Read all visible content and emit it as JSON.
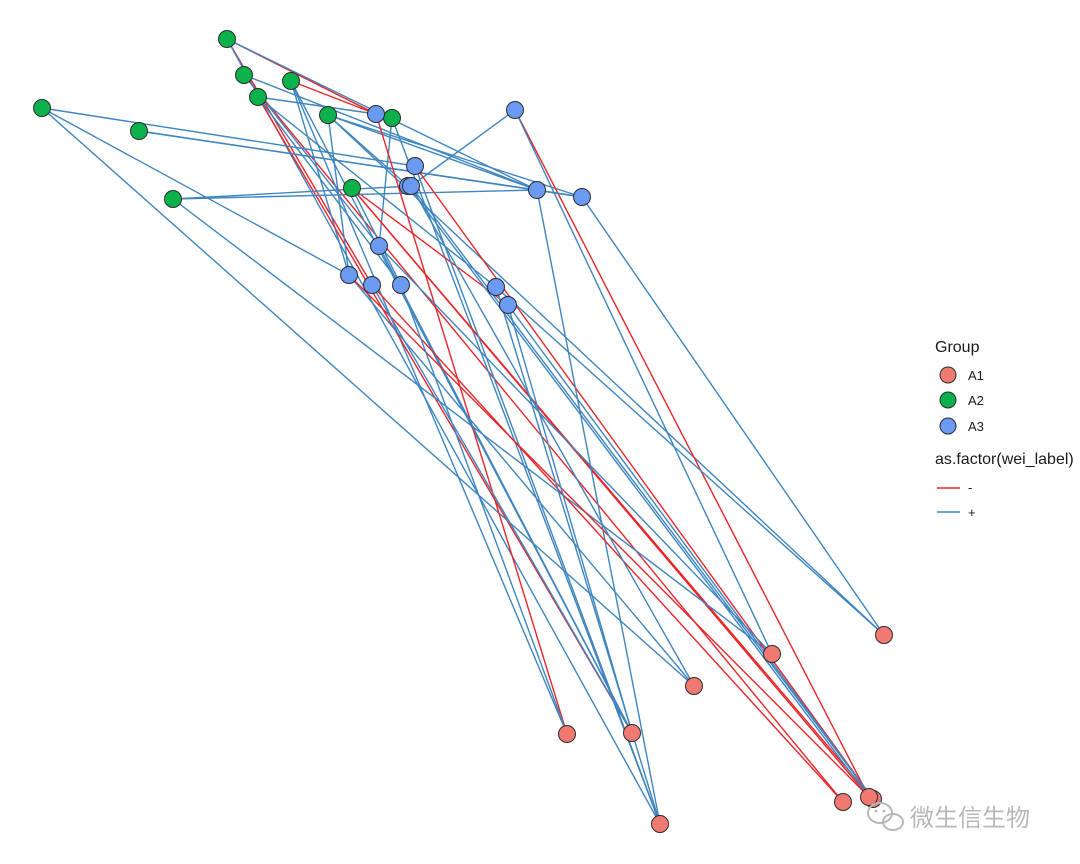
{
  "colors": {
    "background": "#ffffff",
    "node_stroke": "#2b2b2b",
    "group_A1": "#F07A72",
    "group_A2": "#0DB14B",
    "group_A3": "#6B9AF2",
    "edge_negative": "#E8262A",
    "edge_positive": "#3F85BF",
    "watermark": "#b8b8b8"
  },
  "legend": {
    "group_title": "Group",
    "groups": [
      {
        "key": "A1",
        "label": "A1"
      },
      {
        "key": "A2",
        "label": "A2"
      },
      {
        "key": "A3",
        "label": "A3"
      }
    ],
    "edge_title": "as.factor(wei_label)",
    "edges": [
      {
        "key": "-",
        "label": "-"
      },
      {
        "key": "+",
        "label": "+"
      }
    ]
  },
  "watermark": {
    "text": "微生信生物",
    "icon": "wechat-icon"
  },
  "network": {
    "nodes": [
      {
        "id": "g1",
        "group": "A2"
      },
      {
        "id": "g2",
        "group": "A2"
      },
      {
        "id": "g3",
        "group": "A2"
      },
      {
        "id": "g4",
        "group": "A2"
      },
      {
        "id": "g5",
        "group": "A2"
      },
      {
        "id": "g6",
        "group": "A2"
      },
      {
        "id": "g7",
        "group": "A2"
      },
      {
        "id": "g8",
        "group": "A2"
      },
      {
        "id": "g9",
        "group": "A2"
      },
      {
        "id": "g10",
        "group": "A2"
      },
      {
        "id": "b1",
        "group": "A3"
      },
      {
        "id": "b2",
        "group": "A3"
      },
      {
        "id": "b3",
        "group": "A3"
      },
      {
        "id": "b4",
        "group": "A3"
      },
      {
        "id": "b5",
        "group": "A3"
      },
      {
        "id": "b6",
        "group": "A3"
      },
      {
        "id": "b7",
        "group": "A3"
      },
      {
        "id": "b8",
        "group": "A3"
      },
      {
        "id": "b9",
        "group": "A3"
      },
      {
        "id": "b10",
        "group": "A3"
      },
      {
        "id": "b11",
        "group": "A3"
      },
      {
        "id": "b12",
        "group": "A3"
      },
      {
        "id": "b13",
        "group": "A3"
      },
      {
        "id": "r1",
        "group": "A1"
      },
      {
        "id": "r2",
        "group": "A1"
      },
      {
        "id": "r3",
        "group": "A1"
      },
      {
        "id": "r4",
        "group": "A1"
      },
      {
        "id": "r5",
        "group": "A1"
      },
      {
        "id": "r6",
        "group": "A1"
      },
      {
        "id": "r7",
        "group": "A1"
      },
      {
        "id": "r8",
        "group": "A1"
      },
      {
        "id": "r9",
        "group": "A1"
      }
    ],
    "edges": [
      {
        "s": "g1",
        "t": "b2",
        "sign": "-"
      },
      {
        "s": "g1",
        "t": "b4",
        "sign": "+"
      },
      {
        "s": "g1",
        "t": "b9",
        "sign": "-"
      },
      {
        "s": "g1",
        "t": "r6",
        "sign": "+"
      },
      {
        "s": "g2",
        "t": "b4",
        "sign": "+"
      },
      {
        "s": "g2",
        "t": "r7",
        "sign": "-"
      },
      {
        "s": "g2",
        "t": "b7",
        "sign": "+"
      },
      {
        "s": "g3",
        "t": "b2",
        "sign": "-"
      },
      {
        "s": "g3",
        "t": "b8",
        "sign": "+"
      },
      {
        "s": "g3",
        "t": "r5",
        "sign": "+"
      },
      {
        "s": "g3",
        "t": "r4",
        "sign": "+"
      },
      {
        "s": "g4",
        "t": "b2",
        "sign": "+"
      },
      {
        "s": "g4",
        "t": "r4",
        "sign": "-"
      },
      {
        "s": "g4",
        "t": "b11",
        "sign": "+"
      },
      {
        "s": "g4",
        "t": "b10",
        "sign": "+"
      },
      {
        "s": "g5",
        "t": "b3",
        "sign": "+"
      },
      {
        "s": "g5",
        "t": "r3",
        "sign": "+"
      },
      {
        "s": "g5",
        "t": "b8",
        "sign": "+"
      },
      {
        "s": "g6",
        "t": "b4",
        "sign": "+"
      },
      {
        "s": "g6",
        "t": "b5",
        "sign": "+"
      },
      {
        "s": "g7",
        "t": "b4",
        "sign": "+"
      },
      {
        "s": "g7",
        "t": "b6",
        "sign": "+"
      },
      {
        "s": "g7",
        "t": "b5",
        "sign": "+"
      },
      {
        "s": "g7",
        "t": "b8",
        "sign": "+"
      },
      {
        "s": "g7",
        "t": "r1",
        "sign": "+"
      },
      {
        "s": "g8",
        "t": "b7",
        "sign": "+"
      },
      {
        "s": "g8",
        "t": "r6",
        "sign": "+"
      },
      {
        "s": "g9",
        "t": "r8",
        "sign": "-"
      },
      {
        "s": "g9",
        "t": "b12",
        "sign": "-"
      },
      {
        "s": "g9",
        "t": "b10",
        "sign": "+"
      },
      {
        "s": "g9",
        "t": "r9",
        "sign": "-"
      },
      {
        "s": "g10",
        "t": "b4",
        "sign": "+"
      },
      {
        "s": "g10",
        "t": "r2",
        "sign": "+"
      },
      {
        "s": "g10",
        "t": "b13",
        "sign": "+"
      },
      {
        "s": "b1",
        "t": "r9",
        "sign": "-"
      },
      {
        "s": "b1",
        "t": "r2",
        "sign": "+"
      },
      {
        "s": "b1",
        "t": "b13",
        "sign": "+"
      },
      {
        "s": "b2",
        "t": "r5",
        "sign": "-"
      },
      {
        "s": "b3",
        "t": "r6",
        "sign": "+"
      },
      {
        "s": "b3",
        "t": "r8",
        "sign": "-"
      },
      {
        "s": "b4",
        "t": "b5",
        "sign": "+"
      },
      {
        "s": "b4",
        "t": "r6",
        "sign": "+"
      },
      {
        "s": "b5",
        "t": "r1",
        "sign": "+"
      },
      {
        "s": "b6",
        "t": "r9",
        "sign": "+"
      },
      {
        "s": "b7",
        "t": "r2",
        "sign": "+"
      },
      {
        "s": "b7",
        "t": "r4",
        "sign": "+"
      },
      {
        "s": "b8",
        "t": "r3",
        "sign": "+"
      },
      {
        "s": "b8",
        "t": "r9",
        "sign": "-"
      },
      {
        "s": "b9",
        "t": "r7",
        "sign": "-"
      },
      {
        "s": "b9",
        "t": "r4",
        "sign": "+"
      },
      {
        "s": "b10",
        "t": "r5",
        "sign": "+"
      },
      {
        "s": "b11",
        "t": "r6",
        "sign": "+"
      },
      {
        "s": "b11",
        "t": "r1",
        "sign": "+"
      },
      {
        "s": "b12",
        "t": "r4",
        "sign": "+"
      },
      {
        "s": "b12",
        "t": "r8",
        "sign": "+"
      },
      {
        "s": "b13",
        "t": "r8",
        "sign": "+"
      },
      {
        "s": "b13",
        "t": "r3",
        "sign": "+"
      }
    ]
  }
}
